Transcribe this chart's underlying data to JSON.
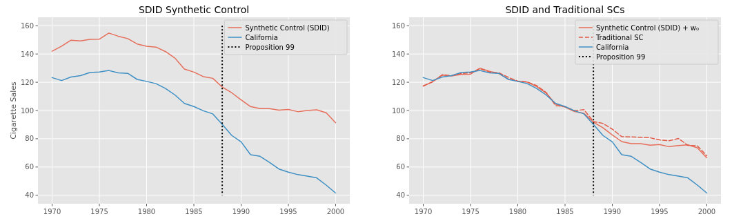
{
  "chart_data": [
    {
      "type": "line",
      "title": "SDID Synthetic Control",
      "ylabel": "Cigarette Sales",
      "x": [
        1970,
        1971,
        1972,
        1973,
        1974,
        1975,
        1976,
        1977,
        1978,
        1979,
        1980,
        1981,
        1982,
        1983,
        1984,
        1985,
        1986,
        1987,
        1988,
        1989,
        1990,
        1991,
        1992,
        1993,
        1994,
        1995,
        1996,
        1997,
        1998,
        1999,
        2000
      ],
      "series": [
        {
          "name": "Synthetic Control (SDID)",
          "color": "#e66e5a",
          "values": [
            142,
            145.5,
            149.8,
            149.3,
            150.3,
            150.5,
            154.8,
            152.6,
            150.9,
            147.1,
            145.5,
            144.9,
            141.7,
            137.1,
            129.3,
            127.2,
            124.0,
            122.8,
            116.6,
            112.6,
            107.5,
            102.8,
            101.3,
            101.3,
            100.2,
            100.7,
            99.2,
            100.0,
            100.5,
            98.4,
            91.3
          ]
        },
        {
          "name": "California",
          "color": "#3d8fc4",
          "values": [
            123.3,
            121.2,
            123.7,
            124.7,
            126.9,
            127.3,
            128.3,
            126.6,
            126.3,
            122.0,
            120.6,
            119.0,
            115.6,
            111.0,
            105.0,
            102.8,
            99.8,
            97.6,
            90.2,
            82.4,
            77.8,
            68.7,
            67.6,
            63.3,
            58.6,
            56.4,
            54.6,
            53.6,
            52.3,
            47.2,
            41.6
          ]
        }
      ],
      "ref_lines": [
        {
          "axis": "x",
          "value": 1988,
          "label": "Proposition 99",
          "color": "#000000",
          "line_style": "dotted"
        }
      ],
      "xlim": [
        1968.5,
        2001.5
      ],
      "xticks": [
        1970,
        1975,
        1980,
        1985,
        1990,
        1995,
        2000
      ],
      "ylim": [
        34,
        166
      ],
      "yticks": [
        40,
        60,
        80,
        100,
        120,
        140,
        160
      ],
      "grid": true,
      "legend": "top right"
    },
    {
      "type": "line",
      "title": "SDID and Traditional SCs",
      "x": [
        1970,
        1971,
        1972,
        1973,
        1974,
        1975,
        1976,
        1977,
        1978,
        1979,
        1980,
        1981,
        1982,
        1983,
        1984,
        1985,
        1986,
        1987,
        1988,
        1989,
        1990,
        1991,
        1992,
        1993,
        1994,
        1995,
        1996,
        1997,
        1998,
        1999,
        2000
      ],
      "series": [
        {
          "name": "Synthetic Control (SDID) + w₀",
          "color": "#e66e5a",
          "values": [
            117.2,
            120.5,
            125.0,
            124.5,
            125.5,
            125.7,
            130.0,
            127.8,
            126.1,
            122.3,
            120.7,
            120.1,
            116.9,
            112.3,
            104.5,
            102.4,
            99.2,
            98.0,
            91.8,
            87.8,
            82.7,
            78.0,
            76.5,
            76.5,
            75.4,
            75.9,
            74.4,
            75.2,
            75.7,
            73.6,
            66.5
          ]
        },
        {
          "name": "Traditional SC",
          "color": "#e25a45",
          "line_style": "dashed",
          "values": [
            117.5,
            120.3,
            125.3,
            124.7,
            126.2,
            126.6,
            129.6,
            127.3,
            126.7,
            123.5,
            120.8,
            120.2,
            117.6,
            112.8,
            103.5,
            102.7,
            99.9,
            100.6,
            92.2,
            90.9,
            86.8,
            81.5,
            81.3,
            81.0,
            80.7,
            79.2,
            78.6,
            80.2,
            75.3,
            75.0,
            68.0
          ]
        },
        {
          "name": "California",
          "color": "#3d8fc4",
          "values": [
            123.3,
            121.2,
            123.7,
            124.7,
            126.9,
            127.3,
            128.3,
            126.6,
            126.3,
            122.0,
            120.6,
            119.0,
            115.6,
            111.0,
            105.0,
            102.8,
            99.8,
            97.6,
            90.2,
            82.4,
            77.8,
            68.7,
            67.6,
            63.3,
            58.6,
            56.4,
            54.6,
            53.6,
            52.3,
            47.2,
            41.6
          ]
        }
      ],
      "ref_lines": [
        {
          "axis": "x",
          "value": 1988,
          "label": "Proposition 99",
          "color": "#000000",
          "line_style": "dotted"
        }
      ],
      "xlim": [
        1968.5,
        2001.5
      ],
      "xticks": [
        1970,
        1975,
        1980,
        1985,
        1990,
        1995,
        2000
      ],
      "ylim": [
        34,
        166
      ],
      "yticks": [
        40,
        60,
        80,
        100,
        120,
        140,
        160
      ],
      "grid": true,
      "legend": "top right"
    }
  ]
}
